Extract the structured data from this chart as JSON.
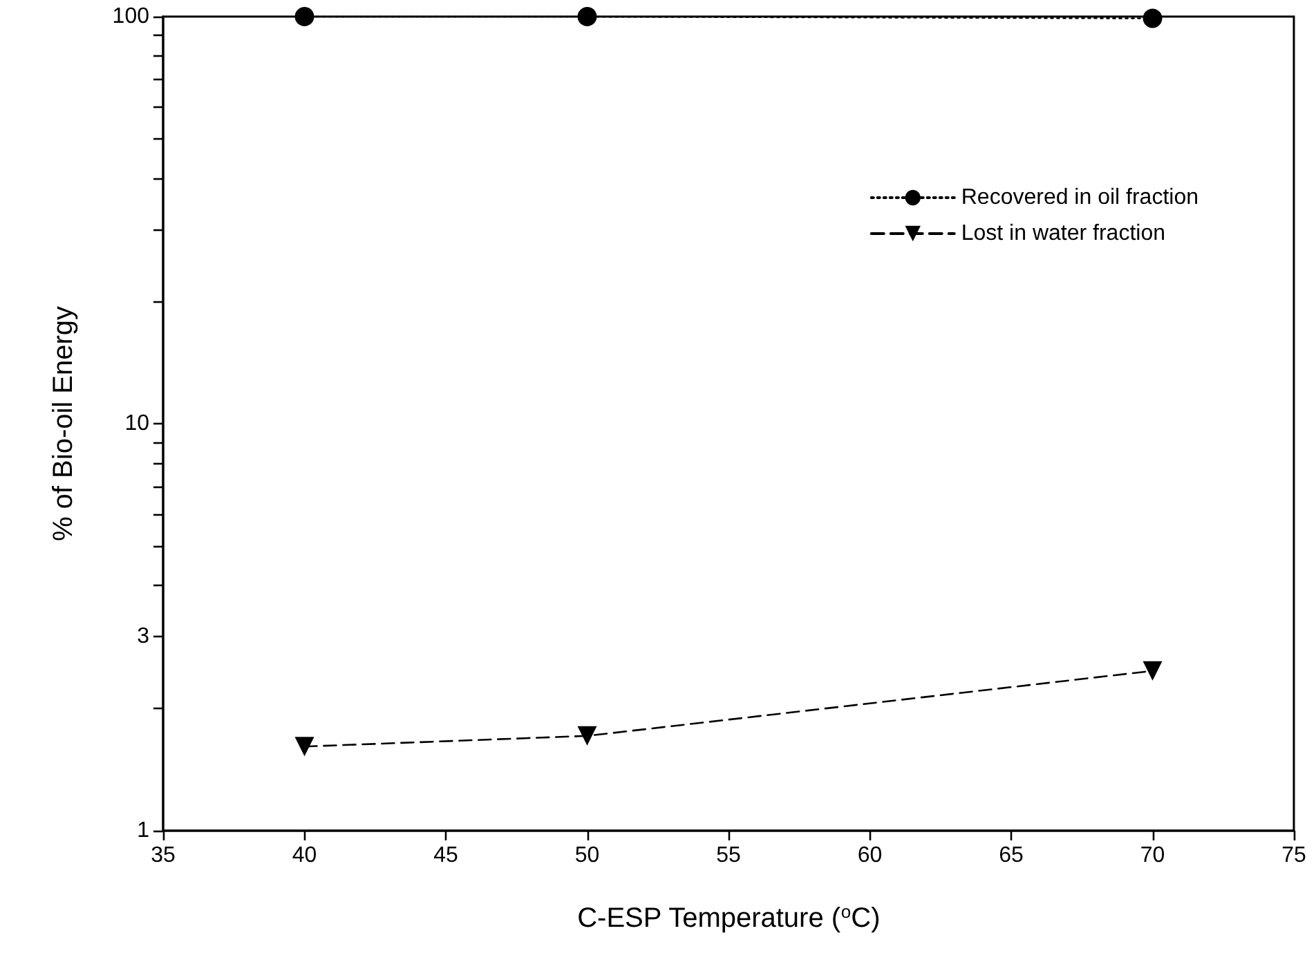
{
  "chart_data": {
    "type": "line",
    "xlabel": "C-ESP Temperature ($^{o}$C)",
    "ylabel": "% of Bio-oil Energy",
    "x": [
      40,
      50,
      70
    ],
    "series": [
      {
        "name": "Recovered in oil fraction",
        "color": "#000000",
        "values": [
          100,
          100,
          99
        ],
        "marker": "circle",
        "line_style": "dotted"
      },
      {
        "name": "Lost in water fraction",
        "color": "#000000",
        "values": [
          1.61,
          1.71,
          2.47
        ],
        "marker": "triangle-down",
        "line_style": "dashed"
      }
    ],
    "xlim": [
      35,
      75
    ],
    "xticks": [
      35,
      40,
      45,
      50,
      55,
      60,
      65,
      70,
      75
    ],
    "ylim": [
      1,
      100
    ],
    "log": "y",
    "yticks": [
      1,
      {
        "value": 2,
        "label": null
      },
      3,
      {
        "value": 4,
        "label": null
      },
      {
        "value": 5,
        "label": null
      },
      {
        "value": 6,
        "label": null
      },
      {
        "value": 7,
        "label": null
      },
      {
        "value": 8,
        "label": null
      },
      {
        "value": 9,
        "label": null
      },
      10,
      {
        "value": 20,
        "label": null
      },
      {
        "value": 30,
        "label": null
      },
      {
        "value": 40,
        "label": null
      },
      {
        "value": 50,
        "label": null
      },
      {
        "value": 60,
        "label": null
      },
      {
        "value": 70,
        "label": null
      },
      {
        "value": 80,
        "label": null
      },
      {
        "value": 90,
        "label": null
      },
      100
    ],
    "grid": false,
    "legend": "top right"
  }
}
